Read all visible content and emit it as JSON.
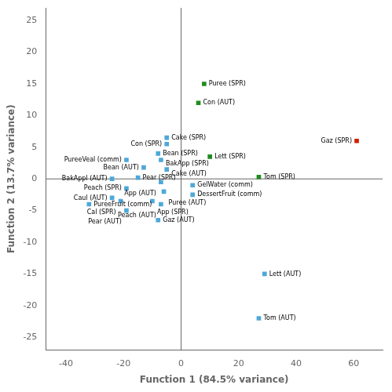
{
  "chart_data": {
    "type": "scatter",
    "xlabel": "Function 1 (84.5% variance)",
    "ylabel": "Function 2 (13.7% variance)",
    "labels": [
      "Puree (SPR)",
      "Con (AUT)",
      "Lett (SPR)",
      "Tom (SPR)",
      "Gaz (SPR)",
      "Lett (AUT)",
      "Tom (AUT)",
      "Cake (SPR)",
      "Con (SPR)",
      "Bean (SPR)",
      "BakApp (SPR)",
      "Cake (AUT)",
      "Bean (AUT)",
      "PureeVeal (comm)",
      "Pear (SPR)",
      "App (AUT)",
      "BakAppl (AUT)",
      "Peach (SPR)",
      "GelWater (comm)",
      "Puree (AUT)",
      "DessertFruit (comm)",
      "Caul (AUT)",
      "Cal (SPR)",
      "App (SPR)",
      "Peach (AUT)",
      "PureeFruit (comm)",
      "Pear (AUT)",
      "Gaz (AUT)"
    ],
    "x": [
      8,
      6,
      10,
      27,
      61,
      29,
      27,
      -5,
      -5,
      -8,
      -7,
      -5,
      -13,
      -19,
      -15,
      -7,
      -24,
      -19,
      4,
      -6,
      4,
      -24,
      -21,
      -10,
      -7,
      -32,
      -19,
      -8
    ],
    "values": [
      15,
      12,
      3.5,
      0.3,
      6,
      -15,
      -22,
      6.5,
      5.5,
      4.0,
      3.0,
      1.5,
      1.8,
      3.0,
      0.2,
      -0.5,
      0.0,
      -1.5,
      -1.0,
      -2.0,
      -2.5,
      -3.0,
      -3.5,
      -3.5,
      -4.0,
      -4.0,
      -5.0,
      -6.5
    ],
    "colors": [
      "#1e8c1e",
      "#1e8c1e",
      "#1e8c1e",
      "#1e8c1e",
      "#cc2200",
      "#4da8d8",
      "#4da8d8",
      "#4da8d8",
      "#4da8d8",
      "#4da8d8",
      "#4da8d8",
      "#4da8d8",
      "#4da8d8",
      "#4da8d8",
      "#4da8d8",
      "#4da8d8",
      "#4da8d8",
      "#4da8d8",
      "#4da8d8",
      "#4da8d8",
      "#4da8d8",
      "#4da8d8",
      "#4da8d8",
      "#4da8d8",
      "#4da8d8",
      "#4da8d8",
      "#4da8d8",
      "#4da8d8"
    ],
    "marker": "square",
    "xlim": [
      -47,
      70
    ],
    "ylim": [
      -27,
      27
    ],
    "xticks": [
      -40,
      -20,
      0,
      20,
      40,
      60
    ],
    "yticks": [
      -25,
      -20,
      -15,
      -10,
      -5,
      0,
      5,
      10,
      15,
      20,
      25
    ],
    "grid": false
  }
}
